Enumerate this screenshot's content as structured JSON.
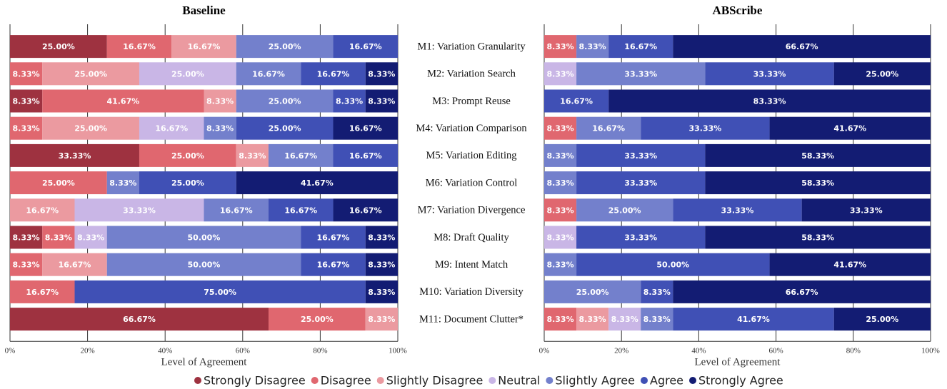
{
  "chart_data": [
    {
      "type": "bar",
      "orientation": "horizontal",
      "stacked": true,
      "title": "Baseline",
      "xlabel": "Level of Agreement",
      "categories": [
        "M1: Variation Granularity",
        "M2: Variation Search",
        "M3: Prompt Reuse",
        "M4: Variation Comparison",
        "M5: Variation Editing",
        "M6: Variation Control",
        "M7: Variation Divergence",
        "M8: Draft Quality",
        "M9: Intent Match",
        "M10: Variation Diversity",
        "M11: Document Clutter*"
      ],
      "xlim": [
        0,
        100
      ],
      "xticks": [
        {
          "value": 0,
          "label": "0%"
        },
        {
          "value": 20,
          "label": "20%"
        },
        {
          "value": 40,
          "label": "40%"
        },
        {
          "value": 60,
          "label": "60%"
        },
        {
          "value": 80,
          "label": "80%"
        },
        {
          "value": 100,
          "label": "100%"
        }
      ],
      "grid": true,
      "legend": "bottom",
      "series": [
        {
          "name": "Strongly Disagree",
          "color": "#9e3240",
          "values": [
            25,
            0,
            8.33,
            0,
            33.33,
            0,
            0,
            8.33,
            0,
            0,
            66.67
          ],
          "value_labels": [
            "25.00%",
            null,
            "8.33%",
            null,
            "33.33%",
            null,
            null,
            "8.33%",
            null,
            null,
            "66.67%"
          ]
        },
        {
          "name": "Disagree",
          "color": "#e0676f",
          "values": [
            16.67,
            8.33,
            41.67,
            8.33,
            25,
            25,
            0,
            8.33,
            8.33,
            16.67,
            25
          ],
          "value_labels": [
            "16.67%",
            "8.33%",
            "41.67%",
            "8.33%",
            "25.00%",
            "25.00%",
            null,
            "8.33%",
            "8.33%",
            "16.67%",
            "25.00%"
          ]
        },
        {
          "name": "Slightly Disagree",
          "color": "#eb9aa0",
          "values": [
            16.67,
            25,
            8.33,
            25,
            8.33,
            0,
            16.67,
            0,
            16.67,
            0,
            8.33
          ],
          "value_labels": [
            "16.67%",
            "25.00%",
            "8.33%",
            "25.00%",
            "8.33%",
            null,
            "16.67%",
            null,
            "16.67%",
            null,
            "8.33%"
          ]
        },
        {
          "name": "Neutral",
          "color": "#c9b6e6",
          "values": [
            0,
            25,
            0,
            16.67,
            0,
            0,
            33.33,
            8.33,
            0,
            0,
            0
          ],
          "value_labels": [
            null,
            "25.00%",
            null,
            "16.67%",
            null,
            null,
            "33.33%",
            "8.33%",
            null,
            null,
            null
          ]
        },
        {
          "name": "Slightly Agree",
          "color": "#7380cc",
          "values": [
            25,
            16.67,
            25,
            8.33,
            16.67,
            8.33,
            16.67,
            50,
            50,
            0,
            0
          ],
          "value_labels": [
            "25.00%",
            "16.67%",
            "25.00%",
            "8.33%",
            "16.67%",
            "8.33%",
            "16.67%",
            "50.00%",
            "50.00%",
            null,
            null
          ]
        },
        {
          "name": "Agree",
          "color": "#4050b5",
          "values": [
            16.67,
            16.67,
            8.33,
            25,
            16.67,
            25,
            16.67,
            16.67,
            16.67,
            75,
            0
          ],
          "value_labels": [
            "16.67%",
            "16.67%",
            "8.33%",
            "25.00%",
            "16.67%",
            "25.00%",
            "16.67%",
            "16.67%",
            "16.67%",
            "75.00%",
            null
          ]
        },
        {
          "name": "Strongly Agree",
          "color": "#131c73",
          "values": [
            0,
            8.33,
            8.33,
            16.67,
            0,
            41.67,
            16.67,
            8.33,
            8.33,
            8.33,
            0
          ],
          "value_labels": [
            null,
            "8.33%",
            "8.33%",
            "16.67%",
            null,
            "41.67%",
            "16.67%",
            "8.33%",
            "8.33%",
            "8.33%",
            null
          ]
        }
      ]
    },
    {
      "type": "bar",
      "orientation": "horizontal",
      "stacked": true,
      "title": "ABScribe",
      "xlabel": "Level of Agreement",
      "xlim": [
        0,
        100
      ],
      "xticks": [
        {
          "value": 0,
          "label": "0%"
        },
        {
          "value": 20,
          "label": "20%"
        },
        {
          "value": 40,
          "label": "40%"
        },
        {
          "value": 60,
          "label": "60%"
        },
        {
          "value": 80,
          "label": "80%"
        },
        {
          "value": 100,
          "label": "100%"
        }
      ],
      "grid": true,
      "series": [
        {
          "color": "#9e3240",
          "values": [
            0,
            0,
            0,
            0,
            0,
            0,
            0,
            0,
            0,
            0,
            0
          ],
          "value_labels": [
            null,
            null,
            null,
            null,
            null,
            null,
            null,
            null,
            null,
            null,
            null
          ]
        },
        {
          "color": "#e0676f",
          "values": [
            8.33,
            0,
            0,
            8.33,
            0,
            0,
            8.33,
            0,
            0,
            0,
            8.33
          ],
          "value_labels": [
            "8.33%",
            null,
            null,
            "8.33%",
            null,
            null,
            "8.33%",
            null,
            null,
            null,
            "8.33%"
          ]
        },
        {
          "color": "#eb9aa0",
          "values": [
            0,
            0,
            0,
            0,
            0,
            0,
            0,
            0,
            0,
            0,
            8.33
          ],
          "value_labels": [
            null,
            null,
            null,
            null,
            null,
            null,
            null,
            null,
            null,
            null,
            "8.33%"
          ]
        },
        {
          "color": "#c9b6e6",
          "values": [
            0,
            8.33,
            0,
            0,
            0,
            0,
            0,
            8.33,
            0,
            0,
            8.33
          ],
          "value_labels": [
            null,
            "8.33%",
            null,
            null,
            null,
            null,
            null,
            "8.33%",
            null,
            null,
            "8.33%"
          ]
        },
        {
          "color": "#7380cc",
          "values": [
            8.33,
            33.33,
            0,
            16.67,
            8.33,
            8.33,
            25,
            0,
            8.33,
            25,
            8.33
          ],
          "value_labels": [
            "8.33%",
            "33.33%",
            null,
            "16.67%",
            "8.33%",
            "8.33%",
            "25.00%",
            null,
            "8.33%",
            "25.00%",
            "8.33%"
          ]
        },
        {
          "color": "#4050b5",
          "values": [
            16.67,
            33.33,
            16.67,
            33.33,
            33.33,
            33.33,
            33.33,
            33.33,
            50,
            8.33,
            41.67
          ],
          "value_labels": [
            "16.67%",
            "33.33%",
            "16.67%",
            "33.33%",
            "33.33%",
            "33.33%",
            "33.33%",
            "33.33%",
            "50.00%",
            "8.33%",
            "41.67%"
          ]
        },
        {
          "color": "#131c73",
          "values": [
            66.67,
            25,
            83.33,
            41.67,
            58.33,
            58.33,
            33.33,
            58.33,
            41.67,
            66.67,
            25
          ],
          "value_labels": [
            "66.67%",
            "25.00%",
            "83.33%",
            "41.67%",
            "58.33%",
            "58.33%",
            "33.33%",
            "58.33%",
            "41.67%",
            "66.67%",
            "25.00%"
          ]
        }
      ]
    }
  ]
}
